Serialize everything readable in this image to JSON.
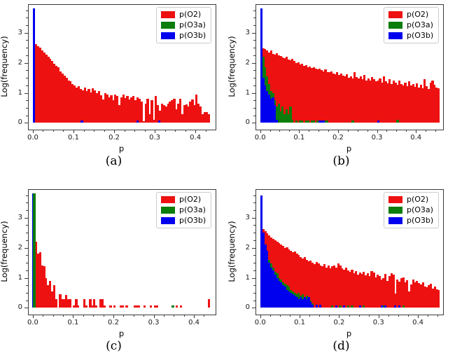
{
  "figure": {
    "background": "#ffffff"
  },
  "axis_shared": {
    "ylabel": "Log(frequency)",
    "xlabel": "p",
    "yticks": [
      0,
      1,
      2,
      3
    ],
    "ylim": [
      -0.2,
      3.95
    ],
    "y_minor_step": 0.25,
    "x_minor_step": 0.025,
    "spine_color": "#3b3b3b",
    "grid": "off"
  },
  "legend": {
    "position": "upper right",
    "items": [
      {
        "label": "p(O2)",
        "color": "#ee1111",
        "swatch_icon": "red-rect-icon"
      },
      {
        "label": "p(O3a)",
        "color": "#0b7d0b",
        "swatch_icon": "green-rect-icon"
      },
      {
        "label": "p(O3b)",
        "color": "#0000ee",
        "swatch_icon": "blue-rect-icon"
      }
    ]
  },
  "chart_data": [
    {
      "type": "bar",
      "caption": "(a)",
      "xlabel": "p",
      "ylabel": "Log(frequency)",
      "xticks": [
        0.0,
        0.1,
        0.2,
        0.3,
        0.4
      ],
      "xlim": [
        -0.012,
        0.448
      ],
      "bin_width": 0.005,
      "series": [
        {
          "name": "p(O2)",
          "color": "#ee1111",
          "x0": 0.0,
          "heights": [
            2.7,
            2.62,
            2.55,
            2.5,
            2.42,
            2.35,
            2.28,
            2.2,
            2.12,
            2.05,
            1.98,
            1.9,
            1.85,
            1.72,
            1.65,
            1.58,
            1.5,
            1.42,
            1.38,
            1.3,
            1.25,
            1.18,
            1.22,
            1.12,
            1.08,
            1.18,
            1.05,
            1.12,
            1.02,
            1.15,
            1.08,
            0.98,
            1.05,
            0.92,
            0.78,
            1.0,
            0.95,
            0.85,
            0.92,
            0.75,
            0.95,
            0.9,
            0.6,
            0.85,
            0.95,
            0.82,
            0.9,
            0.78,
            0.85,
            0.9,
            0.75,
            0.85,
            0.8,
            0.7,
            0.05,
            0.65,
            0.8,
            0.3,
            0.75,
            0.1,
            0.9,
            0.6,
            0.4,
            0.65,
            0.6,
            0.55,
            0.65,
            0.7,
            0.75,
            0.8,
            0.45,
            0.65,
            0.8,
            0.3,
            0.6,
            0.62,
            0.55,
            0.72,
            0.78,
            0.6,
            0.95,
            0.65,
            0.55,
            0.3,
            0.35,
            0.35,
            0.3
          ]
        },
        {
          "name": "p(O3a)",
          "color": "#0b7d0b",
          "bars": []
        },
        {
          "name": "p(O3b)",
          "color": "#0000ee",
          "bars": [
            [
              0.0,
              3.8
            ],
            [
              0.118,
              0.07
            ],
            [
              0.255,
              0.07
            ],
            [
              0.308,
              0.07
            ]
          ]
        }
      ]
    },
    {
      "type": "bar",
      "caption": "(b)",
      "xlabel": "p",
      "ylabel": "Log(frequency)",
      "xticks": [
        0.0,
        0.1,
        0.2,
        0.3,
        0.4
      ],
      "xlim": [
        -0.012,
        0.468
      ],
      "bin_width": 0.005,
      "series": [
        {
          "name": "p(O2)",
          "color": "#ee1111",
          "x0": 0.0,
          "heights": [
            2.5,
            2.48,
            2.45,
            2.4,
            2.35,
            2.42,
            2.3,
            2.28,
            2.32,
            2.25,
            2.22,
            2.18,
            2.15,
            2.2,
            2.1,
            2.08,
            2.12,
            2.05,
            2.0,
            2.02,
            1.95,
            1.98,
            1.9,
            1.92,
            1.85,
            1.88,
            1.82,
            1.85,
            1.8,
            1.78,
            1.8,
            1.75,
            1.72,
            1.78,
            1.7,
            1.68,
            1.72,
            1.65,
            1.62,
            1.68,
            1.6,
            1.65,
            1.58,
            1.55,
            1.62,
            1.5,
            1.55,
            1.48,
            1.7,
            1.52,
            1.48,
            1.55,
            1.45,
            1.6,
            1.42,
            1.48,
            1.4,
            1.52,
            1.45,
            1.38,
            1.42,
            1.48,
            1.35,
            1.55,
            1.38,
            1.32,
            1.45,
            1.3,
            1.4,
            1.35,
            1.28,
            1.42,
            1.3,
            1.25,
            1.35,
            1.22,
            1.38,
            1.25,
            1.3,
            1.2,
            1.32,
            1.18,
            1.28,
            1.15,
            1.45,
            1.22,
            1.12,
            1.35,
            1.4,
            1.28,
            1.18,
            1.15
          ]
        },
        {
          "name": "p(O3a)",
          "color": "#0b7d0b",
          "bars": [
            [
              0.005,
              2.2
            ],
            [
              0.01,
              1.85
            ],
            [
              0.015,
              1.55
            ],
            [
              0.02,
              1.3
            ],
            [
              0.025,
              1.05
            ],
            [
              0.03,
              1.0
            ],
            [
              0.035,
              0.75
            ],
            [
              0.04,
              0.55
            ],
            [
              0.045,
              0.65
            ],
            [
              0.05,
              0.38
            ],
            [
              0.055,
              0.55
            ],
            [
              0.06,
              0.3
            ],
            [
              0.065,
              0.45
            ],
            [
              0.07,
              0.3
            ],
            [
              0.075,
              0.55
            ],
            [
              0.08,
              0.1
            ],
            [
              0.09,
              0.08
            ],
            [
              0.1,
              0.08
            ],
            [
              0.105,
              0.08
            ],
            [
              0.115,
              0.08
            ],
            [
              0.12,
              0.08
            ],
            [
              0.13,
              0.08
            ],
            [
              0.135,
              0.08
            ],
            [
              0.145,
              0.08
            ],
            [
              0.15,
              0.08
            ],
            [
              0.165,
              0.08
            ],
            [
              0.17,
              0.08
            ],
            [
              0.235,
              0.08
            ],
            [
              0.35,
              0.1
            ]
          ]
        },
        {
          "name": "p(O3b)",
          "color": "#0000ee",
          "bars": [
            [
              0.0,
              3.8
            ],
            [
              0.005,
              1.5
            ],
            [
              0.01,
              1.25
            ],
            [
              0.015,
              1.05
            ],
            [
              0.02,
              0.95
            ],
            [
              0.025,
              0.8
            ],
            [
              0.03,
              0.85
            ],
            [
              0.035,
              0.6
            ],
            [
              0.04,
              0.1
            ],
            [
              0.15,
              0.08
            ],
            [
              0.155,
              0.08
            ],
            [
              0.16,
              0.08
            ],
            [
              0.3,
              0.08
            ]
          ]
        }
      ]
    },
    {
      "type": "bar",
      "caption": "(c)",
      "xlabel": "p",
      "ylabel": "Log(frequency)",
      "xticks": [
        0.0,
        0.1,
        0.2,
        0.3,
        0.4
      ],
      "xlim": [
        -0.012,
        0.452
      ],
      "bin_width": 0.005,
      "series": [
        {
          "name": "p(O2)",
          "color": "#ee1111",
          "bars": [
            [
              0.0,
              2.2
            ],
            [
              0.005,
              2.2
            ],
            [
              0.01,
              1.8
            ],
            [
              0.015,
              1.85
            ],
            [
              0.02,
              1.42
            ],
            [
              0.025,
              1.38
            ],
            [
              0.03,
              1.0
            ],
            [
              0.035,
              0.75
            ],
            [
              0.04,
              0.9
            ],
            [
              0.045,
              0.55
            ],
            [
              0.05,
              0.75
            ],
            [
              0.055,
              0.3
            ],
            [
              0.065,
              0.45
            ],
            [
              0.07,
              0.3
            ],
            [
              0.075,
              0.3
            ],
            [
              0.08,
              0.42
            ],
            [
              0.085,
              0.3
            ],
            [
              0.09,
              0.28
            ],
            [
              0.1,
              0.08
            ],
            [
              0.105,
              0.3
            ],
            [
              0.11,
              0.08
            ],
            [
              0.125,
              0.3
            ],
            [
              0.13,
              0.08
            ],
            [
              0.14,
              0.3
            ],
            [
              0.145,
              0.08
            ],
            [
              0.15,
              0.3
            ],
            [
              0.155,
              0.08
            ],
            [
              0.165,
              0.3
            ],
            [
              0.17,
              0.3
            ],
            [
              0.175,
              0.08
            ],
            [
              0.19,
              0.08
            ],
            [
              0.2,
              0.08
            ],
            [
              0.215,
              0.08
            ],
            [
              0.22,
              0.08
            ],
            [
              0.23,
              0.08
            ],
            [
              0.25,
              0.08
            ],
            [
              0.255,
              0.08
            ],
            [
              0.26,
              0.08
            ],
            [
              0.275,
              0.08
            ],
            [
              0.29,
              0.08
            ],
            [
              0.3,
              0.08
            ],
            [
              0.305,
              0.08
            ],
            [
              0.355,
              0.08
            ],
            [
              0.365,
              0.08
            ],
            [
              0.435,
              0.3
            ]
          ]
        },
        {
          "name": "p(O3b)",
          "color": "#0000ee",
          "bars": [
            [
              -0.001,
              3.8
            ]
          ]
        },
        {
          "name": "p(O3a)",
          "color": "#0b7d0b",
          "bars": [
            [
              0.001,
              3.82
            ],
            [
              0.345,
              0.08
            ]
          ]
        }
      ]
    },
    {
      "type": "bar",
      "caption": "(d)",
      "xlabel": "p",
      "ylabel": "Log(frequency)",
      "xticks": [
        0.0,
        0.1,
        0.2,
        0.3,
        0.4
      ],
      "xlim": [
        -0.012,
        0.462
      ],
      "bin_width": 0.005,
      "series": [
        {
          "name": "p(O2)",
          "color": "#ee1111",
          "x0": 0.0,
          "heights": [
            2.8,
            2.62,
            2.55,
            2.48,
            2.42,
            2.35,
            2.3,
            2.25,
            2.2,
            2.15,
            2.1,
            2.05,
            2.0,
            2.02,
            1.95,
            1.9,
            1.85,
            1.88,
            1.8,
            1.75,
            1.7,
            1.65,
            1.68,
            1.6,
            1.55,
            1.58,
            1.5,
            1.45,
            1.52,
            1.48,
            1.42,
            1.38,
            1.45,
            1.35,
            1.4,
            1.32,
            1.38,
            1.42,
            1.35,
            1.48,
            1.4,
            1.32,
            1.28,
            1.35,
            1.25,
            1.2,
            1.28,
            1.15,
            1.22,
            1.1,
            1.18,
            1.12,
            1.2,
            1.08,
            1.15,
            1.05,
            1.22,
            1.18,
            1.02,
            1.1,
            1.05,
            0.95,
            1.0,
            1.12,
            0.9,
            1.05,
            1.15,
            1.1,
            0.48,
            0.95,
            0.88,
            0.98,
            1.02,
            0.85,
            0.92,
            0.55,
            0.78,
            0.95,
            0.85,
            0.9,
            0.82,
            0.78,
            0.85,
            0.72,
            0.68,
            0.75,
            0.8,
            0.65,
            0.72,
            0.62,
            0.6
          ]
        },
        {
          "name": "p(O3a)",
          "color": "#0b7d0b",
          "bars": [
            [
              0.01,
              2.0
            ],
            [
              0.015,
              1.75
            ],
            [
              0.02,
              1.6
            ],
            [
              0.025,
              1.48
            ],
            [
              0.03,
              1.35
            ],
            [
              0.035,
              1.2
            ],
            [
              0.04,
              1.15
            ],
            [
              0.045,
              1.0
            ],
            [
              0.05,
              0.95
            ],
            [
              0.055,
              0.85
            ],
            [
              0.06,
              0.8
            ],
            [
              0.065,
              0.75
            ],
            [
              0.07,
              0.7
            ],
            [
              0.075,
              0.6
            ],
            [
              0.08,
              0.55
            ],
            [
              0.085,
              0.5
            ],
            [
              0.09,
              0.45
            ],
            [
              0.095,
              0.5
            ],
            [
              0.1,
              0.4
            ],
            [
              0.105,
              0.45
            ],
            [
              0.11,
              0.35
            ],
            [
              0.115,
              0.4
            ],
            [
              0.12,
              0.3
            ],
            [
              0.125,
              0.25
            ],
            [
              0.13,
              0.15
            ],
            [
              0.18,
              0.08
            ],
            [
              0.2,
              0.08
            ],
            [
              0.22,
              0.08
            ],
            [
              0.23,
              0.08
            ],
            [
              0.26,
              0.08
            ],
            [
              0.31,
              0.08
            ],
            [
              0.34,
              0.08
            ],
            [
              0.36,
              0.08
            ]
          ]
        },
        {
          "name": "p(O3b)",
          "color": "#0000ee",
          "bars": [
            [
              0.0,
              3.75
            ],
            [
              0.005,
              2.5
            ],
            [
              0.01,
              2.1
            ],
            [
              0.015,
              1.9
            ],
            [
              0.02,
              1.5
            ],
            [
              0.025,
              1.35
            ],
            [
              0.03,
              1.25
            ],
            [
              0.035,
              1.1
            ],
            [
              0.04,
              1.0
            ],
            [
              0.045,
              0.9
            ],
            [
              0.05,
              0.85
            ],
            [
              0.055,
              0.75
            ],
            [
              0.06,
              0.7
            ],
            [
              0.065,
              0.6
            ],
            [
              0.07,
              0.55
            ],
            [
              0.075,
              0.5
            ],
            [
              0.08,
              0.45
            ],
            [
              0.085,
              0.4
            ],
            [
              0.09,
              0.35
            ],
            [
              0.095,
              0.3
            ],
            [
              0.1,
              0.35
            ],
            [
              0.105,
              0.3
            ],
            [
              0.11,
              0.35
            ],
            [
              0.115,
              0.3
            ],
            [
              0.12,
              0.35
            ],
            [
              0.125,
              0.2
            ],
            [
              0.13,
              0.1
            ],
            [
              0.14,
              0.1
            ],
            [
              0.15,
              0.1
            ],
            [
              0.19,
              0.08
            ],
            [
              0.21,
              0.08
            ],
            [
              0.25,
              0.08
            ],
            [
              0.305,
              0.08
            ],
            [
              0.315,
              0.08
            ],
            [
              0.34,
              0.08
            ],
            [
              0.35,
              0.08
            ]
          ]
        }
      ]
    }
  ]
}
